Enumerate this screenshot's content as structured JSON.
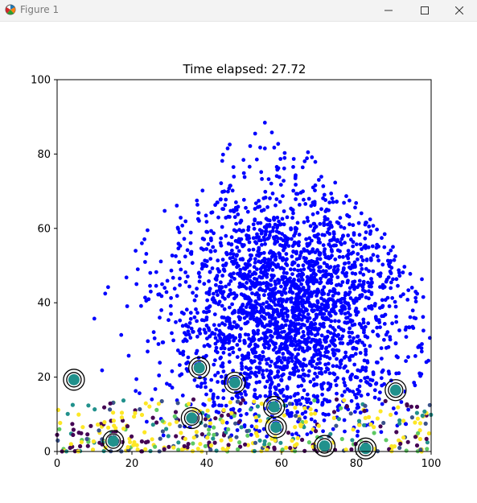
{
  "window": {
    "title": "Figure 1",
    "icons": {
      "app": "matplotlib-icon",
      "minimize": "minimize-icon",
      "maximize": "maximize-icon",
      "close": "close-icon"
    }
  },
  "chart_data": {
    "type": "scatter",
    "title": "Time elapsed: 27.72",
    "xlabel": "",
    "ylabel": "",
    "xlim": [
      0,
      100
    ],
    "ylim": [
      0,
      100
    ],
    "xticks": [
      "0",
      "20",
      "40",
      "60",
      "80",
      "100"
    ],
    "yticks": [
      "0",
      "20",
      "40",
      "60",
      "80",
      "100"
    ],
    "grid": false,
    "legend": "none",
    "colors": {
      "main": "#0000ff",
      "yellow": "#fde725",
      "purple": "#440154",
      "teal": "#21918c",
      "green": "#5ec962",
      "navy": "#3b528b",
      "ring": "#000000"
    },
    "series": [
      {
        "color": "#0000ff",
        "description_only": false,
        "cloud": {
          "count": 2600,
          "center": [
            62,
            38
          ],
          "spread": [
            16,
            17
          ]
        }
      },
      {
        "color": "viridis",
        "cloud": {
          "count": 420,
          "ymax": 14
        }
      }
    ],
    "ringed_points": [
      {
        "x": 4.5,
        "y": 19.3
      },
      {
        "x": 38.0,
        "y": 22.5
      },
      {
        "x": 47.5,
        "y": 18.5
      },
      {
        "x": 90.5,
        "y": 16.5
      },
      {
        "x": 36.0,
        "y": 9.0
      },
      {
        "x": 58.0,
        "y": 12.0
      },
      {
        "x": 58.5,
        "y": 6.5
      },
      {
        "x": 15.0,
        "y": 2.8
      },
      {
        "x": 71.5,
        "y": 1.5
      },
      {
        "x": 82.5,
        "y": 0.8
      }
    ]
  }
}
